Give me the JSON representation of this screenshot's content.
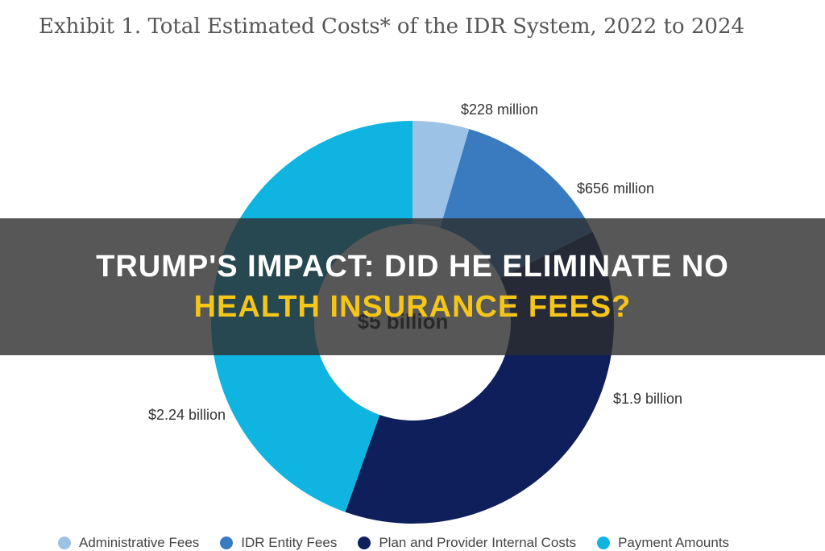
{
  "header": {
    "title": "Exhibit 1. Total Estimated Costs* of the IDR System, 2022 to 2024"
  },
  "banner": {
    "line1": "TRUMP'S IMPACT: DID HE ELIMINATE NO",
    "line2": "HEALTH INSURANCE FEES?",
    "line1_color": "#ffffff",
    "line2_color": "#f5c518"
  },
  "chart_data": {
    "type": "pie",
    "title": "Exhibit 1. Total Estimated Costs* of the IDR System, 2022 to 2024",
    "center_label": "$5 billion",
    "slices": [
      {
        "name": "Administrative Fees",
        "value": 0.228,
        "label": "$228 million",
        "color": "#9cc2e5"
      },
      {
        "name": "IDR Entity Fees",
        "value": 0.656,
        "label": "$656 million",
        "color": "#3a7bbf"
      },
      {
        "name": "Plan and Provider Internal Costs",
        "value": 1.9,
        "label": "$1.9 billion",
        "color": "#0e1f5b"
      },
      {
        "name": "Payment Amounts",
        "value": 2.24,
        "label": "$2.24 billion",
        "color": "#0fb5e0"
      }
    ],
    "legend_position": "bottom"
  }
}
